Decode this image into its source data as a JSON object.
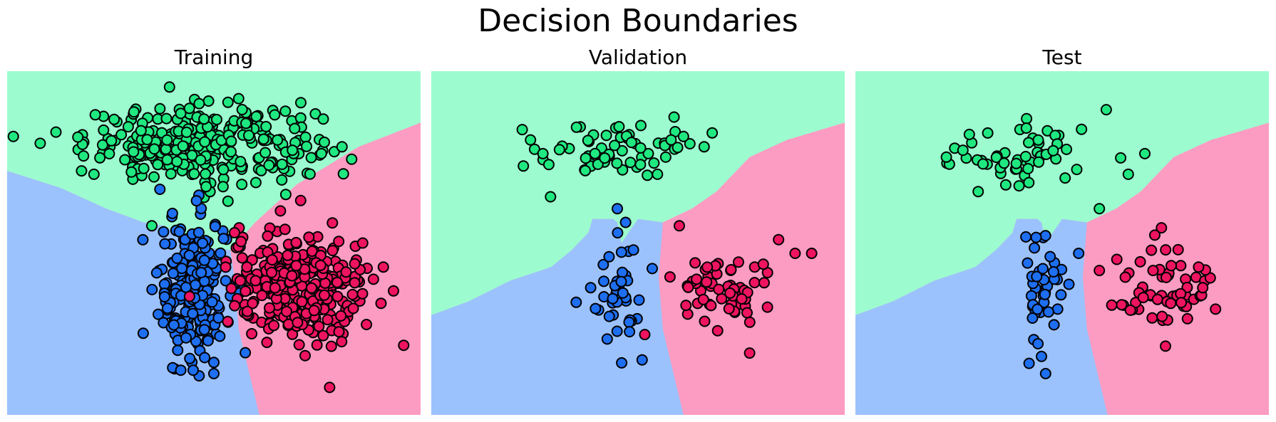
{
  "figure": {
    "title": "Decision Boundaries"
  },
  "colors": {
    "regions": {
      "class_green": "#9cfccf",
      "class_blue": "#9cc2fd",
      "class_pink": "#fd9cc2"
    },
    "points": {
      "class_green": "#20e880",
      "class_blue": "#1e6ef0",
      "class_pink": "#ee1460"
    }
  },
  "chart_data": [
    {
      "type": "scatter",
      "title": "Training",
      "xlim": [
        0,
        100
      ],
      "ylim": [
        0,
        100
      ],
      "axes_visible": false,
      "grid": false,
      "boundary": {
        "green_floor_left": [
          [
            0,
            71
          ],
          [
            13,
            66
          ],
          [
            24,
            60
          ],
          [
            33,
            56
          ],
          [
            38,
            55
          ],
          [
            42,
            52
          ],
          [
            45,
            49
          ]
        ],
        "blue_pink_split": [
          [
            45,
            49
          ],
          [
            54,
            48
          ],
          [
            55,
            40
          ],
          [
            56,
            25
          ],
          [
            61,
            0
          ]
        ],
        "green_pink_split": [
          [
            54,
            48
          ],
          [
            60,
            56
          ],
          [
            70,
            67
          ],
          [
            85,
            78
          ],
          [
            100,
            85
          ]
        ]
      },
      "series": [
        {
          "name": "class_green",
          "center": [
            47,
            79
          ],
          "spread": [
            14,
            5.5
          ],
          "count": 300,
          "extra": [
            [
              8,
              79
            ],
            [
              18,
              71
            ],
            [
              21,
              70
            ],
            [
              35,
              55
            ],
            [
              56,
              92
            ],
            [
              76,
              76
            ],
            [
              81,
              78
            ],
            [
              69,
              77
            ]
          ]
        },
        {
          "name": "class_blue",
          "center": [
            45,
            37
          ],
          "spread": [
            4.2,
            10.5
          ],
          "count": 230,
          "extra": [
            [
              45,
              13
            ],
            [
              50,
              12
            ],
            [
              42,
              13
            ]
          ]
        },
        {
          "name": "class_pink",
          "center": [
            71,
            37
          ],
          "spread": [
            8.5,
            8
          ],
          "count": 300,
          "extra": [
            [
              78,
              8
            ],
            [
              55,
              53
            ],
            [
              91,
              43
            ],
            [
              86,
              50
            ],
            [
              63,
              52
            ],
            [
              58,
              43
            ]
          ]
        }
      ]
    },
    {
      "type": "scatter",
      "title": "Validation",
      "xlim": [
        0,
        100
      ],
      "ylim": [
        0,
        100
      ],
      "axes_visible": false,
      "grid": false,
      "boundary": {
        "green_floor_left": [
          [
            0,
            29
          ],
          [
            9,
            33
          ],
          [
            19,
            39
          ],
          [
            29,
            43
          ],
          [
            34,
            48
          ],
          [
            38,
            53
          ],
          [
            39,
            57
          ],
          [
            44,
            57
          ],
          [
            45,
            56
          ],
          [
            46,
            50
          ],
          [
            50,
            57
          ]
        ],
        "blue_pink_split": [
          [
            56,
            56
          ],
          [
            55,
            40
          ],
          [
            56,
            25
          ],
          [
            61,
            0
          ]
        ],
        "green_pink_split": [
          [
            56,
            56
          ],
          [
            63,
            60
          ],
          [
            69,
            65
          ],
          [
            77,
            75
          ],
          [
            86,
            80
          ],
          [
            100,
            85
          ]
        ]
      },
      "series": [
        {
          "name": "class_green",
          "center": [
            45,
            77
          ],
          "spread": [
            9,
            4.5
          ],
          "count": 60,
          "extra": [
            [
              22,
              83
            ],
            [
              24,
              80
            ],
            [
              27,
              76
            ],
            [
              66,
              78
            ],
            [
              61,
              81
            ],
            [
              58,
              80
            ]
          ]
        },
        {
          "name": "class_blue",
          "center": [
            45,
            36
          ],
          "spread": [
            3,
            8
          ],
          "count": 40,
          "extra": [
            [
              51,
              16
            ],
            [
              43,
              46
            ],
            [
              45,
              60
            ],
            [
              47,
              56
            ]
          ]
        },
        {
          "name": "class_pink",
          "center": [
            71,
            36
          ],
          "spread": [
            6,
            5.5
          ],
          "count": 60,
          "extra": [
            [
              77,
              18
            ],
            [
              60,
              55
            ],
            [
              88,
              47
            ],
            [
              92,
              47
            ],
            [
              84,
              51
            ]
          ]
        }
      ]
    },
    {
      "type": "scatter",
      "title": "Test",
      "xlim": [
        0,
        100
      ],
      "ylim": [
        0,
        100
      ],
      "axes_visible": false,
      "grid": false,
      "boundary": {
        "green_floor_left": [
          [
            0,
            29
          ],
          [
            9,
            33
          ],
          [
            19,
            39
          ],
          [
            29,
            43
          ],
          [
            34,
            48
          ],
          [
            38,
            53
          ],
          [
            39,
            57
          ],
          [
            44,
            57
          ],
          [
            45,
            56
          ],
          [
            46,
            50
          ],
          [
            50,
            57
          ]
        ],
        "blue_pink_split": [
          [
            56,
            56
          ],
          [
            55,
            40
          ],
          [
            56,
            25
          ],
          [
            61,
            0
          ]
        ],
        "green_pink_split": [
          [
            56,
            56
          ],
          [
            63,
            60
          ],
          [
            69,
            65
          ],
          [
            77,
            75
          ],
          [
            86,
            80
          ],
          [
            100,
            85
          ]
        ]
      },
      "series": [
        {
          "name": "class_green",
          "center": [
            42,
            76
          ],
          "spread": [
            10,
            5
          ],
          "count": 55,
          "extra": [
            [
              22,
              75
            ],
            [
              26,
              77
            ],
            [
              32,
              82
            ],
            [
              59,
              60
            ],
            [
              66,
              70
            ],
            [
              70,
              76
            ]
          ]
        },
        {
          "name": "class_blue",
          "center": [
            45,
            36
          ],
          "spread": [
            3,
            9
          ],
          "count": 40,
          "extra": [
            [
              42,
              15
            ],
            [
              45,
              17
            ],
            [
              46,
              12
            ],
            [
              54,
              47
            ]
          ]
        },
        {
          "name": "class_pink",
          "center": [
            75,
            36
          ],
          "spread": [
            5.5,
            7
          ],
          "count": 55,
          "extra": [
            [
              75,
              20
            ],
            [
              59,
              42
            ],
            [
              84,
              37
            ],
            [
              83,
              43
            ]
          ]
        }
      ]
    }
  ]
}
